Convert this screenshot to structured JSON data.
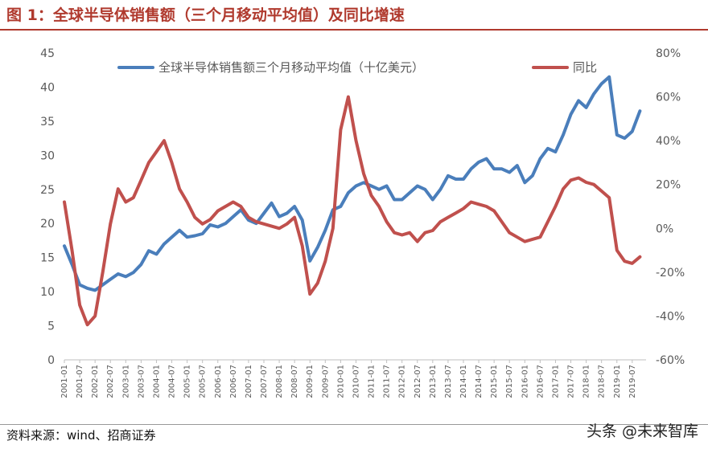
{
  "figure": {
    "title": "图 1：全球半导体销售额（三个月移动平均值）及同比增速",
    "source": "资料来源：wind、招商证券",
    "watermark": "头条 @未来智库"
  },
  "colors": {
    "series_blue": "#4a7ebb",
    "series_red": "#c0504d",
    "title_red": "#b03a2e"
  },
  "chart_data": {
    "type": "line",
    "title": "",
    "x_labels": [
      "2001-01",
      "2001-07",
      "2002-01",
      "2002-07",
      "2003-01",
      "2003-07",
      "2004-01",
      "2004-07",
      "2005-01",
      "2005-07",
      "2006-01",
      "2006-07",
      "2007-01",
      "2007-07",
      "2008-01",
      "2008-07",
      "2009-01",
      "2009-07",
      "2010-01",
      "2010-07",
      "2011-01",
      "2011-07",
      "2012-01",
      "2012-07",
      "2013-01",
      "2013-07",
      "2014-01",
      "2014-07",
      "2015-01",
      "2015-07",
      "2016-01",
      "2016-07",
      "2017-01",
      "2017-07",
      "2018-01",
      "2018-07",
      "2019-01",
      "2019-07"
    ],
    "y_left": {
      "lim": [
        0,
        45
      ],
      "ticks": [
        "0",
        "5",
        "10",
        "15",
        "20",
        "25",
        "30",
        "35",
        "40",
        "45"
      ]
    },
    "y_right": {
      "lim": [
        -60,
        80
      ],
      "ticks": [
        "-60%",
        "-40%",
        "-20%",
        "0%",
        "20%",
        "40%",
        "60%",
        "80%"
      ]
    },
    "legend_position": "top",
    "series": [
      {
        "name": "全球半导体销售额三个月移动平均值（十亿美元）",
        "axis": "left",
        "points": [
          [
            2001.0,
            16.7
          ],
          [
            2001.25,
            14.0
          ],
          [
            2001.5,
            11.0
          ],
          [
            2001.75,
            10.5
          ],
          [
            2002.0,
            10.2
          ],
          [
            2002.25,
            11.0
          ],
          [
            2002.5,
            11.8
          ],
          [
            2002.75,
            12.6
          ],
          [
            2003.0,
            12.2
          ],
          [
            2003.25,
            12.8
          ],
          [
            2003.5,
            14.0
          ],
          [
            2003.75,
            16.0
          ],
          [
            2004.0,
            15.5
          ],
          [
            2004.25,
            17.0
          ],
          [
            2004.5,
            18.0
          ],
          [
            2004.75,
            19.0
          ],
          [
            2005.0,
            18.0
          ],
          [
            2005.25,
            18.2
          ],
          [
            2005.5,
            18.5
          ],
          [
            2005.75,
            19.8
          ],
          [
            2006.0,
            19.5
          ],
          [
            2006.25,
            20.0
          ],
          [
            2006.5,
            21.0
          ],
          [
            2006.75,
            22.0
          ],
          [
            2007.0,
            20.5
          ],
          [
            2007.25,
            20.0
          ],
          [
            2007.5,
            21.5
          ],
          [
            2007.75,
            23.0
          ],
          [
            2008.0,
            21.0
          ],
          [
            2008.25,
            21.5
          ],
          [
            2008.5,
            22.5
          ],
          [
            2008.75,
            20.5
          ],
          [
            2009.0,
            14.5
          ],
          [
            2009.25,
            16.5
          ],
          [
            2009.5,
            19.0
          ],
          [
            2009.75,
            22.0
          ],
          [
            2010.0,
            22.5
          ],
          [
            2010.25,
            24.5
          ],
          [
            2010.5,
            25.5
          ],
          [
            2010.75,
            26.0
          ],
          [
            2011.0,
            25.5
          ],
          [
            2011.25,
            25.0
          ],
          [
            2011.5,
            25.5
          ],
          [
            2011.75,
            23.5
          ],
          [
            2012.0,
            23.5
          ],
          [
            2012.25,
            24.5
          ],
          [
            2012.5,
            25.5
          ],
          [
            2012.75,
            25.0
          ],
          [
            2013.0,
            23.5
          ],
          [
            2013.25,
            25.0
          ],
          [
            2013.5,
            27.0
          ],
          [
            2013.75,
            26.5
          ],
          [
            2014.0,
            26.5
          ],
          [
            2014.25,
            28.0
          ],
          [
            2014.5,
            29.0
          ],
          [
            2014.75,
            29.5
          ],
          [
            2015.0,
            28.0
          ],
          [
            2015.25,
            28.0
          ],
          [
            2015.5,
            27.5
          ],
          [
            2015.75,
            28.5
          ],
          [
            2016.0,
            26.0
          ],
          [
            2016.25,
            27.0
          ],
          [
            2016.5,
            29.5
          ],
          [
            2016.75,
            31.0
          ],
          [
            2017.0,
            30.5
          ],
          [
            2017.25,
            33.0
          ],
          [
            2017.5,
            36.0
          ],
          [
            2017.75,
            38.0
          ],
          [
            2018.0,
            37.0
          ],
          [
            2018.25,
            39.0
          ],
          [
            2018.5,
            40.5
          ],
          [
            2018.75,
            41.5
          ],
          [
            2019.0,
            33.0
          ],
          [
            2019.25,
            32.5
          ],
          [
            2019.5,
            33.5
          ],
          [
            2019.75,
            36.5
          ]
        ]
      },
      {
        "name": "同比",
        "axis": "right",
        "points": [
          [
            2001.0,
            12
          ],
          [
            2001.25,
            -10
          ],
          [
            2001.5,
            -35
          ],
          [
            2001.75,
            -44
          ],
          [
            2002.0,
            -40
          ],
          [
            2002.25,
            -20
          ],
          [
            2002.5,
            2
          ],
          [
            2002.75,
            18
          ],
          [
            2003.0,
            12
          ],
          [
            2003.25,
            14
          ],
          [
            2003.5,
            22
          ],
          [
            2003.75,
            30
          ],
          [
            2004.0,
            35
          ],
          [
            2004.25,
            40
          ],
          [
            2004.5,
            30
          ],
          [
            2004.75,
            18
          ],
          [
            2005.0,
            12
          ],
          [
            2005.25,
            5
          ],
          [
            2005.5,
            2
          ],
          [
            2005.75,
            4
          ],
          [
            2006.0,
            8
          ],
          [
            2006.25,
            10
          ],
          [
            2006.5,
            12
          ],
          [
            2006.75,
            10
          ],
          [
            2007.0,
            5
          ],
          [
            2007.25,
            3
          ],
          [
            2007.5,
            2
          ],
          [
            2007.75,
            1
          ],
          [
            2008.0,
            0
          ],
          [
            2008.25,
            2
          ],
          [
            2008.5,
            5
          ],
          [
            2008.75,
            -8
          ],
          [
            2009.0,
            -30
          ],
          [
            2009.25,
            -25
          ],
          [
            2009.5,
            -15
          ],
          [
            2009.75,
            0
          ],
          [
            2010.0,
            45
          ],
          [
            2010.25,
            60
          ],
          [
            2010.5,
            40
          ],
          [
            2010.75,
            25
          ],
          [
            2011.0,
            15
          ],
          [
            2011.25,
            10
          ],
          [
            2011.5,
            3
          ],
          [
            2011.75,
            -2
          ],
          [
            2012.0,
            -3
          ],
          [
            2012.25,
            -2
          ],
          [
            2012.5,
            -6
          ],
          [
            2012.75,
            -2
          ],
          [
            2013.0,
            -1
          ],
          [
            2013.25,
            3
          ],
          [
            2013.5,
            5
          ],
          [
            2013.75,
            7
          ],
          [
            2014.0,
            9
          ],
          [
            2014.25,
            12
          ],
          [
            2014.5,
            11
          ],
          [
            2014.75,
            10
          ],
          [
            2015.0,
            8
          ],
          [
            2015.25,
            3
          ],
          [
            2015.5,
            -2
          ],
          [
            2015.75,
            -4
          ],
          [
            2016.0,
            -6
          ],
          [
            2016.25,
            -5
          ],
          [
            2016.5,
            -4
          ],
          [
            2016.75,
            3
          ],
          [
            2017.0,
            10
          ],
          [
            2017.25,
            18
          ],
          [
            2017.5,
            22
          ],
          [
            2017.75,
            23
          ],
          [
            2018.0,
            21
          ],
          [
            2018.25,
            20
          ],
          [
            2018.5,
            17
          ],
          [
            2018.75,
            14
          ],
          [
            2019.0,
            -10
          ],
          [
            2019.25,
            -15
          ],
          [
            2019.5,
            -16
          ],
          [
            2019.75,
            -13
          ]
        ]
      }
    ]
  }
}
